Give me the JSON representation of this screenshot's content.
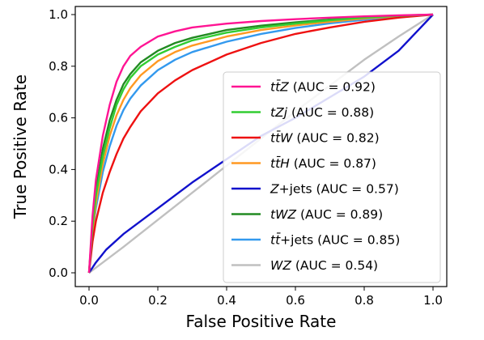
{
  "chart_data": {
    "type": "line",
    "title": "",
    "xlabel": "False Positive Rate",
    "ylabel": "True Positive Rate",
    "xlim": [
      0,
      1
    ],
    "ylim": [
      0,
      1
    ],
    "xticks": [
      "0.0",
      "0.2",
      "0.4",
      "0.6",
      "0.8",
      "1.0"
    ],
    "yticks": [
      "0.0",
      "0.2",
      "0.4",
      "0.6",
      "0.8",
      "1.0"
    ],
    "grid": false,
    "legend_placement": "lower-right",
    "series": [
      {
        "name": "ttZ",
        "legend_main": "tt̄Z",
        "legend_rest": " (AUC = 0.92)",
        "auc": 0.92,
        "color": "#ff1493",
        "x": [
          0,
          0.01,
          0.02,
          0.04,
          0.06,
          0.08,
          0.1,
          0.12,
          0.15,
          0.2,
          0.25,
          0.3,
          0.4,
          0.5,
          0.6,
          0.7,
          0.8,
          0.9,
          1.0
        ],
        "y": [
          0,
          0.22,
          0.36,
          0.53,
          0.65,
          0.74,
          0.8,
          0.84,
          0.875,
          0.915,
          0.935,
          0.95,
          0.965,
          0.975,
          0.982,
          0.988,
          0.993,
          0.997,
          1.0
        ]
      },
      {
        "name": "tZj",
        "legend_main": "tZj",
        "legend_rest": " (AUC = 0.88)",
        "auc": 0.88,
        "color": "#32cd32",
        "x": [
          0,
          0.01,
          0.02,
          0.04,
          0.06,
          0.08,
          0.1,
          0.12,
          0.15,
          0.2,
          0.25,
          0.3,
          0.4,
          0.5,
          0.6,
          0.7,
          0.8,
          0.9,
          1.0
        ],
        "y": [
          0,
          0.18,
          0.3,
          0.45,
          0.56,
          0.65,
          0.71,
          0.755,
          0.8,
          0.845,
          0.875,
          0.9,
          0.93,
          0.95,
          0.965,
          0.978,
          0.988,
          0.995,
          1.0
        ]
      },
      {
        "name": "ttW",
        "legend_main": "tt̄W",
        "legend_rest": " (AUC = 0.82)",
        "auc": 0.82,
        "color": "#ee1111",
        "x": [
          0,
          0.01,
          0.02,
          0.04,
          0.06,
          0.08,
          0.1,
          0.12,
          0.15,
          0.2,
          0.25,
          0.3,
          0.4,
          0.5,
          0.6,
          0.7,
          0.8,
          0.9,
          1.0
        ],
        "y": [
          0,
          0.12,
          0.2,
          0.31,
          0.39,
          0.46,
          0.52,
          0.565,
          0.625,
          0.695,
          0.745,
          0.785,
          0.845,
          0.89,
          0.925,
          0.95,
          0.972,
          0.988,
          1.0
        ]
      },
      {
        "name": "ttH",
        "legend_main": "tt̄H",
        "legend_rest": " (AUC = 0.87)",
        "auc": 0.87,
        "color": "#ff9922",
        "x": [
          0,
          0.01,
          0.02,
          0.04,
          0.06,
          0.08,
          0.1,
          0.12,
          0.15,
          0.2,
          0.25,
          0.3,
          0.4,
          0.5,
          0.6,
          0.7,
          0.8,
          0.9,
          1.0
        ],
        "y": [
          0,
          0.16,
          0.27,
          0.42,
          0.53,
          0.61,
          0.67,
          0.715,
          0.765,
          0.82,
          0.855,
          0.88,
          0.915,
          0.94,
          0.958,
          0.972,
          0.985,
          0.994,
          1.0
        ]
      },
      {
        "name": "Z+jets",
        "legend_main": "Z",
        "legend_rest": "+jets (AUC = 0.57)",
        "auc": 0.57,
        "color": "#1111cc",
        "x": [
          0,
          0.02,
          0.05,
          0.1,
          0.2,
          0.3,
          0.4,
          0.5,
          0.6,
          0.7,
          0.8,
          0.9,
          0.95,
          1.0
        ],
        "y": [
          0,
          0.04,
          0.09,
          0.15,
          0.25,
          0.35,
          0.44,
          0.53,
          0.6,
          0.68,
          0.76,
          0.86,
          0.93,
          1.0
        ]
      },
      {
        "name": "tWZ",
        "legend_main": "tWZ",
        "legend_rest": " (AUC = 0.89)",
        "auc": 0.89,
        "color": "#228b22",
        "x": [
          0,
          0.01,
          0.02,
          0.04,
          0.06,
          0.08,
          0.1,
          0.12,
          0.15,
          0.2,
          0.25,
          0.3,
          0.4,
          0.5,
          0.6,
          0.7,
          0.8,
          0.9,
          1.0
        ],
        "y": [
          0,
          0.19,
          0.32,
          0.48,
          0.59,
          0.67,
          0.73,
          0.77,
          0.815,
          0.86,
          0.89,
          0.91,
          0.94,
          0.957,
          0.97,
          0.981,
          0.99,
          0.996,
          1.0
        ]
      },
      {
        "name": "tt+jets",
        "legend_main": "tt̄",
        "legend_rest": "+jets (AUC = 0.85)",
        "auc": 0.85,
        "color": "#3399ee",
        "x": [
          0,
          0.01,
          0.02,
          0.04,
          0.06,
          0.08,
          0.1,
          0.12,
          0.15,
          0.2,
          0.25,
          0.3,
          0.4,
          0.5,
          0.6,
          0.7,
          0.8,
          0.9,
          1.0
        ],
        "y": [
          0,
          0.15,
          0.25,
          0.39,
          0.49,
          0.57,
          0.63,
          0.675,
          0.725,
          0.785,
          0.825,
          0.855,
          0.895,
          0.925,
          0.948,
          0.966,
          0.98,
          0.992,
          1.0
        ]
      },
      {
        "name": "WZ",
        "legend_main": "WZ",
        "legend_rest": " (AUC = 0.54)",
        "auc": 0.54,
        "color": "#c0c0c0",
        "x": [
          0,
          0.05,
          0.1,
          0.2,
          0.3,
          0.4,
          0.5,
          0.6,
          0.7,
          0.8,
          0.9,
          1.0
        ],
        "y": [
          0,
          0.05,
          0.1,
          0.205,
          0.31,
          0.415,
          0.52,
          0.625,
          0.725,
          0.825,
          0.915,
          1.0
        ]
      }
    ]
  }
}
